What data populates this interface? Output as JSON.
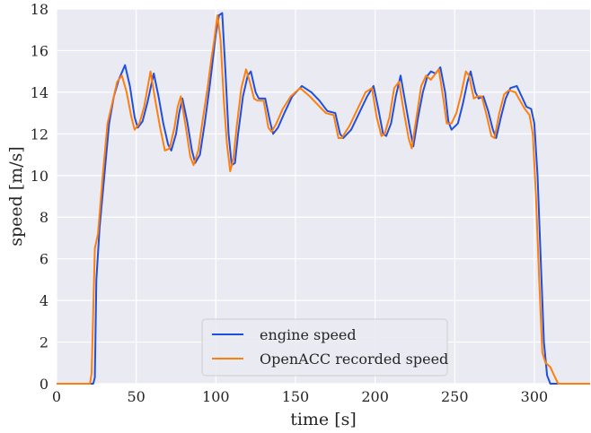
{
  "chart_data": {
    "type": "line",
    "xlabel": "time [s]",
    "ylabel": "speed [m/s]",
    "xlim": [
      0,
      335
    ],
    "ylim": [
      0,
      18
    ],
    "xticks": [
      0,
      50,
      100,
      150,
      200,
      250,
      300
    ],
    "yticks": [
      0,
      2,
      4,
      6,
      8,
      10,
      12,
      14,
      16,
      18
    ],
    "grid": true,
    "background": "#eaeaf2",
    "legend_position": "lower-center",
    "series": [
      {
        "name": "engine speed",
        "color": "#1f4fe0",
        "points": [
          [
            0,
            0
          ],
          [
            23,
            0
          ],
          [
            24,
            0.3
          ],
          [
            25,
            5
          ],
          [
            27,
            7.5
          ],
          [
            30,
            10
          ],
          [
            33,
            12.5
          ],
          [
            36,
            13.8
          ],
          [
            39,
            14.6
          ],
          [
            43,
            15.3
          ],
          [
            46,
            14.3
          ],
          [
            49,
            12.8
          ],
          [
            51,
            12.3
          ],
          [
            54,
            12.6
          ],
          [
            57,
            13.5
          ],
          [
            61,
            14.9
          ],
          [
            64,
            13.8
          ],
          [
            67,
            12.5
          ],
          [
            70,
            11.5
          ],
          [
            72,
            11.2
          ],
          [
            75,
            12
          ],
          [
            77,
            13
          ],
          [
            79,
            13.7
          ],
          [
            82,
            12.6
          ],
          [
            85,
            11.2
          ],
          [
            87,
            10.6
          ],
          [
            90,
            11
          ],
          [
            93,
            12.5
          ],
          [
            96,
            14.2
          ],
          [
            98,
            15.5
          ],
          [
            100,
            16.8
          ],
          [
            102,
            17.7
          ],
          [
            104,
            17.8
          ],
          [
            106,
            15
          ],
          [
            108,
            12
          ],
          [
            110,
            10.5
          ],
          [
            112,
            10.6
          ],
          [
            114,
            12
          ],
          [
            117,
            13.8
          ],
          [
            120,
            14.8
          ],
          [
            122,
            15
          ],
          [
            125,
            14
          ],
          [
            127,
            13.7
          ],
          [
            131,
            13.7
          ],
          [
            134,
            12.6
          ],
          [
            136,
            12
          ],
          [
            139,
            12.3
          ],
          [
            143,
            13
          ],
          [
            148,
            13.8
          ],
          [
            154,
            14.3
          ],
          [
            160,
            14
          ],
          [
            165,
            13.6
          ],
          [
            170,
            13.1
          ],
          [
            175,
            13
          ],
          [
            178,
            12
          ],
          [
            180,
            11.8
          ],
          [
            185,
            12.2
          ],
          [
            190,
            13
          ],
          [
            195,
            13.8
          ],
          [
            199,
            14.3
          ],
          [
            202,
            13.2
          ],
          [
            205,
            12
          ],
          [
            207,
            11.9
          ],
          [
            210,
            12.5
          ],
          [
            213,
            13.8
          ],
          [
            216,
            14.8
          ],
          [
            219,
            13.5
          ],
          [
            222,
            12.2
          ],
          [
            224,
            11.4
          ],
          [
            227,
            12.8
          ],
          [
            230,
            14
          ],
          [
            233,
            14.8
          ],
          [
            235,
            15
          ],
          [
            238,
            14.9
          ],
          [
            241,
            15.2
          ],
          [
            244,
            14
          ],
          [
            246,
            12.6
          ],
          [
            248,
            12.2
          ],
          [
            252,
            12.5
          ],
          [
            255,
            13.4
          ],
          [
            258,
            14.5
          ],
          [
            260,
            15
          ],
          [
            263,
            14
          ],
          [
            265,
            13.7
          ],
          [
            268,
            13.8
          ],
          [
            271,
            13.1
          ],
          [
            274,
            12.2
          ],
          [
            276,
            11.8
          ],
          [
            279,
            12.8
          ],
          [
            282,
            13.7
          ],
          [
            285,
            14.2
          ],
          [
            289,
            14.3
          ],
          [
            292,
            13.8
          ],
          [
            295,
            13.3
          ],
          [
            298,
            13.2
          ],
          [
            300,
            12.5
          ],
          [
            302,
            10
          ],
          [
            304,
            6
          ],
          [
            306,
            2
          ],
          [
            308,
            0.4
          ],
          [
            310,
            0
          ],
          [
            335,
            0
          ]
        ]
      },
      {
        "name": "OpenACC recorded speed",
        "color": "#ff7f0e",
        "points": [
          [
            0,
            0
          ],
          [
            21,
            0
          ],
          [
            22,
            0.5
          ],
          [
            24,
            6.5
          ],
          [
            26,
            7.2
          ],
          [
            29,
            10
          ],
          [
            32,
            12.5
          ],
          [
            35,
            13.5
          ],
          [
            38,
            14.5
          ],
          [
            41,
            14.8
          ],
          [
            44,
            14
          ],
          [
            47,
            12.8
          ],
          [
            49,
            12.2
          ],
          [
            52,
            12.5
          ],
          [
            55,
            13.3
          ],
          [
            59,
            15
          ],
          [
            62,
            13.6
          ],
          [
            65,
            12.3
          ],
          [
            68,
            11.2
          ],
          [
            71,
            11.3
          ],
          [
            74,
            12.3
          ],
          [
            76,
            13.3
          ],
          [
            78,
            13.8
          ],
          [
            81,
            12.4
          ],
          [
            84,
            10.9
          ],
          [
            86,
            10.5
          ],
          [
            89,
            11.2
          ],
          [
            92,
            12.8
          ],
          [
            95,
            14.3
          ],
          [
            97,
            15.5
          ],
          [
            99,
            16.5
          ],
          [
            101,
            17.7
          ],
          [
            103,
            16.5
          ],
          [
            105,
            13.6
          ],
          [
            107,
            11.5
          ],
          [
            109,
            10.2
          ],
          [
            111,
            10.8
          ],
          [
            113,
            12.3
          ],
          [
            116,
            14.2
          ],
          [
            119,
            15.1
          ],
          [
            121,
            14.6
          ],
          [
            124,
            13.7
          ],
          [
            126,
            13.6
          ],
          [
            130,
            13.6
          ],
          [
            133,
            12.3
          ],
          [
            135,
            12.1
          ],
          [
            138,
            12.5
          ],
          [
            142,
            13.2
          ],
          [
            147,
            13.8
          ],
          [
            153,
            14.2
          ],
          [
            159,
            13.8
          ],
          [
            164,
            13.4
          ],
          [
            169,
            13
          ],
          [
            174,
            12.9
          ],
          [
            177,
            11.8
          ],
          [
            179,
            11.8
          ],
          [
            184,
            12.4
          ],
          [
            189,
            13.2
          ],
          [
            194,
            14
          ],
          [
            198,
            14.2
          ],
          [
            201,
            12.8
          ],
          [
            204,
            11.9
          ],
          [
            206,
            12
          ],
          [
            209,
            12.8
          ],
          [
            212,
            14.2
          ],
          [
            215,
            14.5
          ],
          [
            218,
            13.1
          ],
          [
            221,
            11.8
          ],
          [
            223,
            11.3
          ],
          [
            226,
            12.8
          ],
          [
            229,
            14.3
          ],
          [
            232,
            14.8
          ],
          [
            235,
            14.6
          ],
          [
            237,
            14.8
          ],
          [
            240,
            15.1
          ],
          [
            243,
            13.6
          ],
          [
            245,
            12.5
          ],
          [
            248,
            12.5
          ],
          [
            251,
            13
          ],
          [
            254,
            13.9
          ],
          [
            257,
            15
          ],
          [
            259,
            14.8
          ],
          [
            262,
            13.7
          ],
          [
            264,
            13.8
          ],
          [
            267,
            13.8
          ],
          [
            270,
            12.9
          ],
          [
            273,
            11.9
          ],
          [
            275,
            11.8
          ],
          [
            278,
            13
          ],
          [
            281,
            13.9
          ],
          [
            284,
            14.1
          ],
          [
            288,
            14
          ],
          [
            291,
            13.6
          ],
          [
            294,
            13.2
          ],
          [
            297,
            12.9
          ],
          [
            299,
            12
          ],
          [
            301,
            9
          ],
          [
            303,
            5
          ],
          [
            305,
            1.5
          ],
          [
            307,
            1
          ],
          [
            310,
            0.8
          ],
          [
            313,
            0.3
          ],
          [
            315,
            0
          ],
          [
            335,
            0
          ]
        ]
      }
    ]
  }
}
